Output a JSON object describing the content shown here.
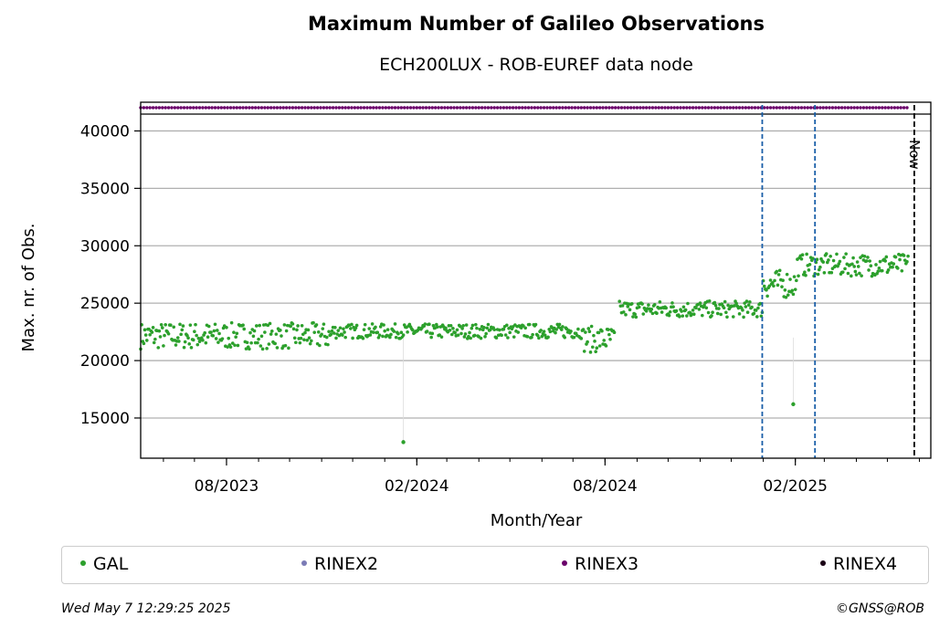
{
  "chart_data": {
    "type": "scatter",
    "title": "Maximum Number of Galileo Observations",
    "subtitle": "ECH200LUX - ROB-EUREF data node",
    "xlabel": "Month/Year",
    "ylabel": "Max. nr. of Obs.",
    "x_ticks": [
      "08/2023",
      "02/2024",
      "08/2024",
      "02/2025"
    ],
    "y_ticks": [
      15000,
      20000,
      25000,
      30000,
      35000,
      40000
    ],
    "ylim": [
      11500,
      42500
    ],
    "xlim": [
      "2023-05-10",
      "2025-06-12"
    ],
    "grid": "horizontal",
    "now_label": "Now",
    "now_date": "2025-05-27",
    "event_lines": [
      "2024-12-31",
      "2025-02-20"
    ],
    "outliers": [
      {
        "date": "2024-01-19",
        "value": 12900
      },
      {
        "date": "2025-01-30",
        "value": 16200
      }
    ],
    "series": [
      {
        "name": "GAL",
        "color": "#2ca02c",
        "segments": [
          {
            "start": "2023-05-10",
            "end": "2023-11-10",
            "low": 20600,
            "high": 23300
          },
          {
            "start": "2023-11-11",
            "end": "2024-07-09",
            "low": 21700,
            "high": 23200
          },
          {
            "start": "2024-07-10",
            "end": "2024-08-10",
            "low": 20300,
            "high": 23000
          },
          {
            "start": "2024-08-15",
            "end": "2024-12-31",
            "low": 23500,
            "high": 25200
          },
          {
            "start": "2025-01-01",
            "end": "2025-02-02",
            "low": 25000,
            "high": 27900
          },
          {
            "start": "2025-02-03",
            "end": "2025-05-21",
            "low": 27000,
            "high": 29300
          }
        ]
      },
      {
        "name": "RINEX2",
        "color": "#7b7bb6"
      },
      {
        "name": "RINEX3",
        "color": "#6a006a",
        "start": "2023-05-10",
        "end": "2025-05-21"
      },
      {
        "name": "RINEX4",
        "color": "#1a0015"
      }
    ]
  },
  "legend": {
    "gal": "GAL",
    "rinex2": "RINEX2",
    "rinex3": "RINEX3",
    "rinex4": "RINEX4"
  },
  "footer": {
    "timestamp": "Wed May  7 12:29:25 2025",
    "copyright": "©GNSS@ROB"
  }
}
